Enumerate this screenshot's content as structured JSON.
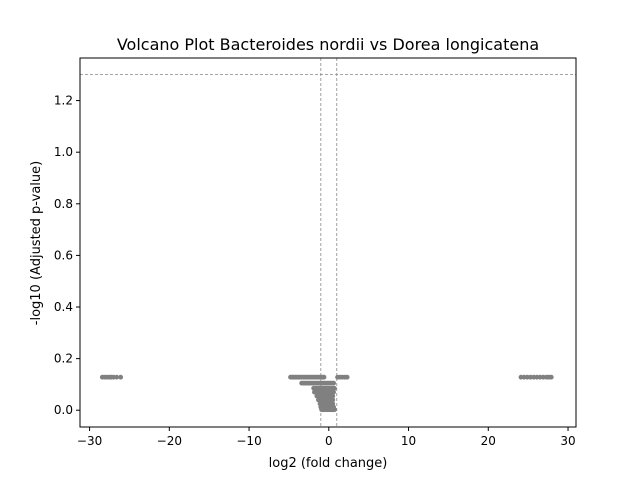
{
  "chart_data": {
    "type": "scatter",
    "title": "Volcano Plot Bacteroides nordii vs Dorea longicatena",
    "xlabel": "log2 (fold change)",
    "ylabel": "-log10 (Adjusted p-value)",
    "xlim": [
      -31.2,
      31.0
    ],
    "ylim": [
      -0.065,
      1.365
    ],
    "xticks": [
      -30,
      -20,
      -10,
      0,
      10,
      20,
      30
    ],
    "xtick_labels": [
      "−30",
      "−20",
      "−10",
      "0",
      "10",
      "20",
      "30"
    ],
    "yticks": [
      0.0,
      0.2,
      0.4,
      0.6,
      0.8,
      1.0,
      1.2
    ],
    "ytick_labels": [
      "0.0",
      "0.2",
      "0.4",
      "0.6",
      "0.8",
      "1.0",
      "1.2"
    ],
    "reference_lines": {
      "horizontal_y": 1.301,
      "vertical_x": [
        -1,
        1
      ],
      "style": "dashed",
      "color": "#888888"
    },
    "grid": false,
    "legend": "none",
    "marker_color": "#808080",
    "series": [
      {
        "values": [
          [
            -28.4,
            0.128
          ],
          [
            -28.1,
            0.128
          ],
          [
            -27.8,
            0.128
          ],
          [
            -27.5,
            0.128
          ],
          [
            -27.3,
            0.128
          ],
          [
            -27.0,
            0.128
          ],
          [
            -26.6,
            0.128
          ],
          [
            -26.1,
            0.128
          ],
          [
            -4.8,
            0.128
          ],
          [
            -4.6,
            0.128
          ],
          [
            -4.4,
            0.128
          ],
          [
            -4.2,
            0.128
          ],
          [
            -4.0,
            0.128
          ],
          [
            -3.8,
            0.128
          ],
          [
            -3.6,
            0.128
          ],
          [
            -3.4,
            0.128
          ],
          [
            -3.2,
            0.128
          ],
          [
            -3.0,
            0.128
          ],
          [
            -2.8,
            0.128
          ],
          [
            -2.6,
            0.128
          ],
          [
            -2.4,
            0.128
          ],
          [
            -2.2,
            0.128
          ],
          [
            -2.0,
            0.128
          ],
          [
            -1.8,
            0.128
          ],
          [
            -1.6,
            0.128
          ],
          [
            -1.4,
            0.128
          ],
          [
            -1.2,
            0.128
          ],
          [
            -1.0,
            0.128
          ],
          [
            -0.8,
            0.128
          ],
          [
            -0.6,
            0.128
          ],
          [
            1.1,
            0.128
          ],
          [
            1.4,
            0.128
          ],
          [
            1.7,
            0.128
          ],
          [
            2.0,
            0.128
          ],
          [
            2.3,
            0.128
          ],
          [
            -3.4,
            0.105
          ],
          [
            -3.2,
            0.105
          ],
          [
            -3.0,
            0.105
          ],
          [
            -2.8,
            0.105
          ],
          [
            -2.6,
            0.105
          ],
          [
            -2.4,
            0.105
          ],
          [
            -2.2,
            0.105
          ],
          [
            -2.0,
            0.105
          ],
          [
            -1.8,
            0.105
          ],
          [
            -1.6,
            0.105
          ],
          [
            -1.4,
            0.105
          ],
          [
            -1.2,
            0.105
          ],
          [
            -1.0,
            0.105
          ],
          [
            -0.8,
            0.105
          ],
          [
            -0.6,
            0.105
          ],
          [
            -0.4,
            0.105
          ],
          [
            -0.2,
            0.105
          ],
          [
            0.0,
            0.105
          ],
          [
            0.2,
            0.105
          ],
          [
            0.4,
            0.105
          ],
          [
            0.6,
            0.105
          ],
          [
            -1.9,
            0.085
          ],
          [
            -1.7,
            0.085
          ],
          [
            -1.5,
            0.085
          ],
          [
            -1.3,
            0.085
          ],
          [
            -1.1,
            0.085
          ],
          [
            -0.9,
            0.085
          ],
          [
            -0.7,
            0.085
          ],
          [
            -0.5,
            0.085
          ],
          [
            -0.3,
            0.085
          ],
          [
            -0.1,
            0.085
          ],
          [
            0.1,
            0.085
          ],
          [
            0.3,
            0.085
          ],
          [
            0.5,
            0.085
          ],
          [
            0.7,
            0.085
          ],
          [
            -1.8,
            0.07
          ],
          [
            -1.6,
            0.07
          ],
          [
            -1.4,
            0.07
          ],
          [
            -1.2,
            0.07
          ],
          [
            -1.0,
            0.07
          ],
          [
            -0.8,
            0.07
          ],
          [
            -0.6,
            0.07
          ],
          [
            -0.4,
            0.07
          ],
          [
            -0.2,
            0.07
          ],
          [
            0.0,
            0.07
          ],
          [
            0.2,
            0.07
          ],
          [
            0.4,
            0.07
          ],
          [
            0.6,
            0.07
          ],
          [
            -1.5,
            0.055
          ],
          [
            -1.3,
            0.055
          ],
          [
            -1.1,
            0.055
          ],
          [
            -0.9,
            0.055
          ],
          [
            -0.7,
            0.055
          ],
          [
            -0.5,
            0.055
          ],
          [
            -0.3,
            0.055
          ],
          [
            -0.1,
            0.055
          ],
          [
            0.1,
            0.055
          ],
          [
            0.3,
            0.055
          ],
          [
            0.5,
            0.055
          ],
          [
            -1.3,
            0.04
          ],
          [
            -1.1,
            0.04
          ],
          [
            -0.9,
            0.04
          ],
          [
            -0.7,
            0.04
          ],
          [
            -0.5,
            0.04
          ],
          [
            -0.3,
            0.04
          ],
          [
            -0.1,
            0.04
          ],
          [
            0.1,
            0.04
          ],
          [
            0.3,
            0.04
          ],
          [
            0.5,
            0.04
          ],
          [
            -1.1,
            0.025
          ],
          [
            -0.9,
            0.025
          ],
          [
            -0.7,
            0.025
          ],
          [
            -0.5,
            0.025
          ],
          [
            -0.3,
            0.025
          ],
          [
            -0.1,
            0.025
          ],
          [
            0.1,
            0.025
          ],
          [
            0.3,
            0.025
          ],
          [
            0.5,
            0.025
          ],
          [
            -1.0,
            0.012
          ],
          [
            -0.8,
            0.012
          ],
          [
            -0.6,
            0.012
          ],
          [
            -0.4,
            0.012
          ],
          [
            -0.2,
            0.012
          ],
          [
            0.0,
            0.012
          ],
          [
            0.2,
            0.012
          ],
          [
            0.4,
            0.012
          ],
          [
            0.6,
            0.012
          ],
          [
            -0.9,
            0.002
          ],
          [
            -0.7,
            0.002
          ],
          [
            -0.5,
            0.002
          ],
          [
            -0.3,
            0.002
          ],
          [
            -0.1,
            0.002
          ],
          [
            0.1,
            0.002
          ],
          [
            0.3,
            0.002
          ],
          [
            0.5,
            0.002
          ],
          [
            0.7,
            0.002
          ],
          [
            24.1,
            0.128
          ],
          [
            24.5,
            0.128
          ],
          [
            24.9,
            0.128
          ],
          [
            25.3,
            0.128
          ],
          [
            25.7,
            0.128
          ],
          [
            26.1,
            0.128
          ],
          [
            26.5,
            0.128
          ],
          [
            26.9,
            0.128
          ],
          [
            27.3,
            0.128
          ],
          [
            27.6,
            0.128
          ],
          [
            27.9,
            0.128
          ]
        ]
      }
    ]
  }
}
